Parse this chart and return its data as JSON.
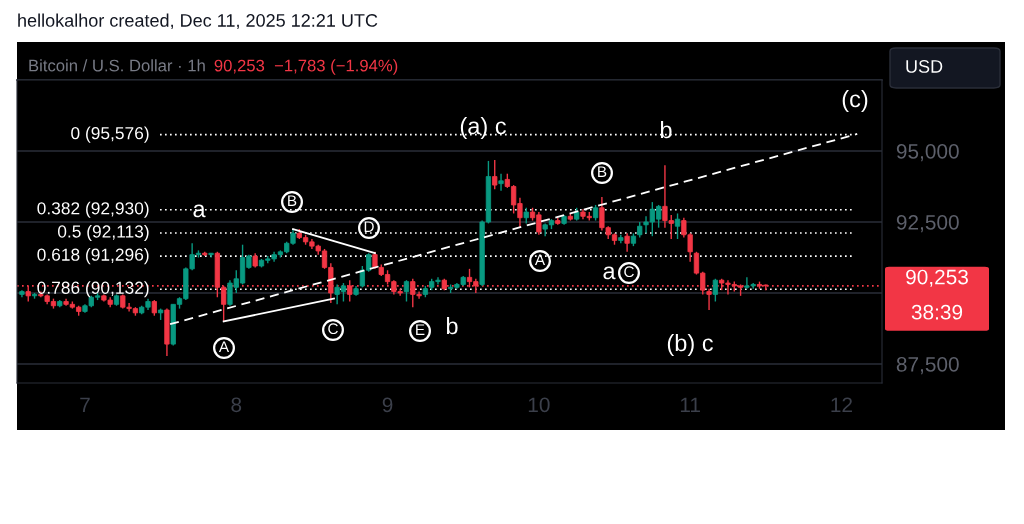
{
  "chart_data": {
    "type": "candlestick",
    "title": "hellokalhor created, Dec 11, 2025 12:21 UTC",
    "subtitle": "Bitcoin / U.S. Dollar · 1h",
    "x": [
      "2025-12-06T14:00",
      "2025-12-06T15:00",
      "2025-12-06T16:00",
      "2025-12-06T17:00",
      "2025-12-06T18:00",
      "2025-12-06T19:00",
      "2025-12-06T20:00",
      "2025-12-06T21:00",
      "2025-12-06T22:00",
      "2025-12-06T23:00",
      "2025-12-07T00:00",
      "2025-12-07T01:00",
      "2025-12-07T02:00",
      "2025-12-07T03:00",
      "2025-12-07T04:00",
      "2025-12-07T05:00",
      "2025-12-07T06:00",
      "2025-12-07T07:00",
      "2025-12-07T08:00",
      "2025-12-07T09:00",
      "2025-12-07T10:00",
      "2025-12-07T11:00",
      "2025-12-07T12:00",
      "2025-12-07T13:00",
      "2025-12-07T14:00",
      "2025-12-07T15:00",
      "2025-12-07T16:00",
      "2025-12-07T17:00",
      "2025-12-07T18:00",
      "2025-12-07T19:00",
      "2025-12-07T20:00",
      "2025-12-07T21:00",
      "2025-12-07T22:00",
      "2025-12-07T23:00",
      "2025-12-08T00:00",
      "2025-12-08T01:00",
      "2025-12-08T02:00",
      "2025-12-08T03:00",
      "2025-12-08T04:00",
      "2025-12-08T05:00",
      "2025-12-08T06:00",
      "2025-12-08T07:00",
      "2025-12-08T08:00",
      "2025-12-08T09:00",
      "2025-12-08T10:00",
      "2025-12-08T11:00",
      "2025-12-08T12:00",
      "2025-12-08T13:00",
      "2025-12-08T14:00",
      "2025-12-08T15:00",
      "2025-12-08T16:00",
      "2025-12-08T17:00",
      "2025-12-08T18:00",
      "2025-12-08T19:00",
      "2025-12-08T20:00",
      "2025-12-08T21:00",
      "2025-12-08T22:00",
      "2025-12-08T23:00",
      "2025-12-09T00:00",
      "2025-12-09T01:00",
      "2025-12-09T02:00",
      "2025-12-09T03:00",
      "2025-12-09T04:00",
      "2025-12-09T05:00",
      "2025-12-09T06:00",
      "2025-12-09T07:00",
      "2025-12-09T08:00",
      "2025-12-09T09:00",
      "2025-12-09T10:00",
      "2025-12-09T11:00",
      "2025-12-09T12:00",
      "2025-12-09T13:00",
      "2025-12-09T14:00",
      "2025-12-09T15:00",
      "2025-12-09T16:00",
      "2025-12-09T17:00",
      "2025-12-09T18:00",
      "2025-12-09T19:00",
      "2025-12-09T20:00",
      "2025-12-09T21:00",
      "2025-12-09T22:00",
      "2025-12-09T23:00",
      "2025-12-10T00:00",
      "2025-12-10T01:00",
      "2025-12-10T02:00",
      "2025-12-10T03:00",
      "2025-12-10T04:00",
      "2025-12-10T05:00",
      "2025-12-10T06:00",
      "2025-12-10T07:00",
      "2025-12-10T08:00",
      "2025-12-10T09:00",
      "2025-12-10T10:00",
      "2025-12-10T11:00",
      "2025-12-10T12:00",
      "2025-12-10T13:00",
      "2025-12-10T14:00",
      "2025-12-10T15:00",
      "2025-12-10T16:00",
      "2025-12-10T17:00",
      "2025-12-10T18:00",
      "2025-12-10T19:00",
      "2025-12-10T20:00",
      "2025-12-10T21:00",
      "2025-12-10T22:00",
      "2025-12-10T23:00",
      "2025-12-11T00:00",
      "2025-12-11T01:00",
      "2025-12-11T02:00",
      "2025-12-11T03:00",
      "2025-12-11T04:00",
      "2025-12-11T05:00",
      "2025-12-11T06:00",
      "2025-12-11T07:00",
      "2025-12-11T08:00",
      "2025-12-11T09:00",
      "2025-12-11T10:00",
      "2025-12-11T11:00",
      "2025-12-11T12:00"
    ],
    "ohlc": [
      [
        89950,
        90100,
        89850,
        90050
      ],
      [
        90050,
        90250,
        89700,
        89900
      ],
      [
        89900,
        90000,
        89800,
        89950
      ],
      [
        89950,
        90050,
        89850,
        89900
      ],
      [
        89900,
        89950,
        89600,
        89700
      ],
      [
        89700,
        89800,
        89450,
        89550
      ],
      [
        89550,
        89750,
        89500,
        89700
      ],
      [
        89700,
        89800,
        89550,
        89600
      ],
      [
        89600,
        89700,
        89450,
        89500
      ],
      [
        89500,
        89550,
        89200,
        89350
      ],
      [
        89350,
        89600,
        89300,
        89550
      ],
      [
        89550,
        89900,
        89500,
        89850
      ],
      [
        89850,
        90000,
        89750,
        89900
      ],
      [
        89900,
        89950,
        89700,
        89750
      ],
      [
        89750,
        89850,
        89500,
        89600
      ],
      [
        89600,
        89950,
        89550,
        89900
      ],
      [
        89900,
        89950,
        89450,
        89500
      ],
      [
        89500,
        89650,
        89350,
        89450
      ],
      [
        89450,
        89500,
        89200,
        89300
      ],
      [
        89300,
        89550,
        89250,
        89500
      ],
      [
        89500,
        89800,
        89400,
        89700
      ],
      [
        89700,
        89750,
        89200,
        89300
      ],
      [
        89300,
        89450,
        89050,
        89400
      ],
      [
        89400,
        89450,
        87780,
        88200
      ],
      [
        88200,
        89600,
        88150,
        89600
      ],
      [
        89600,
        89850,
        89450,
        89800
      ],
      [
        89800,
        90900,
        89750,
        90850
      ],
      [
        90850,
        91750,
        90800,
        91350
      ],
      [
        91350,
        91500,
        91250,
        91400
      ],
      [
        91400,
        91450,
        91300,
        91350
      ],
      [
        91350,
        91400,
        91250,
        91400
      ],
      [
        91400,
        91450,
        89850,
        90200
      ],
      [
        90200,
        90250,
        88980,
        89600
      ],
      [
        89600,
        90450,
        89550,
        90350
      ],
      [
        90200,
        90800,
        90000,
        90500
      ],
      [
        90350,
        91700,
        90300,
        91250
      ],
      [
        90900,
        91350,
        90850,
        91300
      ],
      [
        91300,
        91400,
        90900,
        90950
      ],
      [
        90950,
        91200,
        90900,
        91150
      ],
      [
        91150,
        91300,
        91050,
        91200
      ],
      [
        91200,
        91450,
        91100,
        91350
      ],
      [
        91350,
        91500,
        91250,
        91450
      ],
      [
        91450,
        91800,
        91400,
        91750
      ],
      [
        91750,
        92250,
        91700,
        92100
      ],
      [
        92100,
        92250,
        91900,
        91950
      ],
      [
        91950,
        92050,
        91700,
        91800
      ],
      [
        91800,
        91900,
        91550,
        91650
      ],
      [
        91650,
        91700,
        91350,
        91480
      ],
      [
        91480,
        91550,
        90850,
        90900
      ],
      [
        90900,
        91050,
        89650,
        90000
      ],
      [
        89950,
        90300,
        89600,
        90200
      ],
      [
        90050,
        90350,
        89700,
        90250
      ],
      [
        90250,
        90450,
        89700,
        89950
      ],
      [
        89950,
        90250,
        89900,
        90150
      ],
      [
        90250,
        90950,
        90200,
        90800
      ],
      [
        90800,
        91400,
        90750,
        91350
      ],
      [
        91350,
        91450,
        90850,
        90900
      ],
      [
        90900,
        91000,
        90600,
        90650
      ],
      [
        90650,
        90800,
        90300,
        90400
      ],
      [
        90400,
        90450,
        89950,
        90050
      ],
      [
        90050,
        90150,
        89900,
        90000
      ],
      [
        90050,
        90450,
        89700,
        90400
      ],
      [
        90400,
        90500,
        89500,
        89950
      ],
      [
        89950,
        90050,
        89800,
        89900
      ],
      [
        89950,
        90250,
        89850,
        90150
      ],
      [
        90200,
        90500,
        90100,
        90400
      ],
      [
        90400,
        90550,
        90300,
        90450
      ],
      [
        90450,
        90500,
        90100,
        90150
      ],
      [
        90150,
        90300,
        90000,
        90200
      ],
      [
        90200,
        90350,
        90150,
        90300
      ],
      [
        90300,
        90600,
        90250,
        90550
      ],
      [
        90550,
        90850,
        90200,
        90400
      ],
      [
        90400,
        90500,
        90000,
        90250
      ],
      [
        90300,
        92550,
        90250,
        92500
      ],
      [
        92500,
        94650,
        92450,
        94100
      ],
      [
        94100,
        94680,
        93650,
        93800
      ],
      [
        93850,
        94200,
        93600,
        93950
      ],
      [
        94000,
        94200,
        93700,
        93750
      ],
      [
        93750,
        93800,
        92800,
        93100
      ],
      [
        93150,
        93350,
        92300,
        92650
      ],
      [
        92650,
        93000,
        92450,
        92850
      ],
      [
        92850,
        93000,
        92550,
        92650
      ],
      [
        92750,
        92850,
        92050,
        92150
      ],
      [
        92250,
        92450,
        92000,
        92400
      ],
      [
        92400,
        92600,
        92250,
        92550
      ],
      [
        92550,
        92650,
        92400,
        92450
      ],
      [
        92450,
        92750,
        92400,
        92700
      ],
      [
        92700,
        92800,
        92550,
        92600
      ],
      [
        92600,
        93000,
        92550,
        92850
      ],
      [
        92850,
        92950,
        92600,
        92700
      ],
      [
        92700,
        92850,
        92550,
        92650
      ],
      [
        92650,
        93100,
        92550,
        93000
      ],
      [
        93000,
        93380,
        92200,
        92300
      ],
      [
        92300,
        92350,
        91900,
        92050
      ],
      [
        92050,
        92100,
        91700,
        91850
      ],
      [
        91850,
        92050,
        91750,
        91950
      ],
      [
        92000,
        92100,
        91450,
        91750
      ],
      [
        91750,
        92100,
        91650,
        92000
      ],
      [
        92050,
        92500,
        91950,
        92350
      ],
      [
        92400,
        92700,
        92100,
        92500
      ],
      [
        92500,
        93200,
        92000,
        92950
      ],
      [
        92600,
        93100,
        92300,
        93050
      ],
      [
        93050,
        94500,
        92300,
        92550
      ],
      [
        92550,
        92750,
        91900,
        92450
      ],
      [
        92350,
        92800,
        91900,
        92600
      ],
      [
        92550,
        92650,
        91950,
        92050
      ],
      [
        92050,
        92100,
        91100,
        91450
      ],
      [
        91400,
        91450,
        90650,
        90700
      ],
      [
        90700,
        90750,
        89950,
        90100
      ],
      [
        90050,
        90150,
        89400,
        89950
      ],
      [
        89950,
        90500,
        89700,
        90450
      ],
      [
        90450,
        90500,
        90100,
        90350
      ],
      [
        90350,
        90450,
        89950,
        90300
      ],
      [
        90300,
        90400,
        90050,
        90250
      ],
      [
        90250,
        90300,
        89900,
        90200
      ],
      [
        90200,
        90550,
        90150,
        90250
      ],
      [
        90250,
        90350,
        90150,
        90300
      ],
      [
        90300,
        90400,
        90150,
        90250
      ],
      [
        90280,
        90300,
        90100,
        90253
      ]
    ],
    "colors": [
      "#089981",
      "#f23645",
      "#089981",
      "#f23645",
      "#f23645",
      "#f23645",
      "#089981",
      "#f23645",
      "#f23645",
      "#f23645",
      "#089981",
      "#089981",
      "#089981",
      "#f23645",
      "#f23645",
      "#089981",
      "#f23645",
      "#f23645",
      "#f23645",
      "#089981",
      "#089981",
      "#f23645",
      "#089981",
      "#f23645",
      "#089981",
      "#089981",
      "#089981",
      "#089981",
      "#089981",
      "#f23645",
      "#089981",
      "#f23645",
      "#f23645",
      "#089981",
      "#089981",
      "#089981",
      "#089981",
      "#f23645",
      "#089981",
      "#089981",
      "#089981",
      "#089981",
      "#089981",
      "#089981",
      "#f23645",
      "#f23645",
      "#f23645",
      "#f23645",
      "#f23645",
      "#f23645",
      "#089981",
      "#089981",
      "#f23645",
      "#089981",
      "#089981",
      "#089981",
      "#f23645",
      "#f23645",
      "#f23645",
      "#f23645",
      "#f23645",
      "#089981",
      "#f23645",
      "#f23645",
      "#089981",
      "#089981",
      "#089981",
      "#f23645",
      "#089981",
      "#089981",
      "#089981",
      "#f23645",
      "#f23645",
      "#089981",
      "#089981",
      "#f23645",
      "#089981",
      "#f23645",
      "#f23645",
      "#f23645",
      "#089981",
      "#f23645",
      "#f23645",
      "#089981",
      "#089981",
      "#f23645",
      "#089981",
      "#f23645",
      "#089981",
      "#f23645",
      "#f23645",
      "#089981",
      "#f23645",
      "#f23645",
      "#f23645",
      "#089981",
      "#f23645",
      "#089981",
      "#089981",
      "#089981",
      "#089981",
      "#089981",
      "#f23645",
      "#f23645",
      "#089981",
      "#f23645",
      "#f23645",
      "#f23645",
      "#f23645",
      "#f23645",
      "#089981",
      "#f23645",
      "#f23645",
      "#f23645",
      "#f23645",
      "#089981",
      "#089981",
      "#f23645",
      "#f23645"
    ],
    "series": [
      {
        "type": "line",
        "color": "#ffffff",
        "line_style": "dashed",
        "x": [
          "2025-12-07T13:30",
          "2025-12-12T02:30"
        ],
        "values": [
          88900,
          95600
        ]
      },
      {
        "type": "line",
        "color": "#ffffff",
        "line_style": "solid",
        "x": [
          "2025-12-07T22:00",
          "2025-12-08T15:30"
        ],
        "values": [
          89000,
          89800
        ]
      },
      {
        "type": "line",
        "color": "#ffffff",
        "line_style": "solid",
        "x": [
          "2025-12-08T09:00",
          "2025-12-08T22:00"
        ],
        "values": [
          92250,
          91400
        ]
      }
    ],
    "xlim": [
      "2025-12-06T13:13",
      "2025-12-12T06:26"
    ],
    "xticks": [
      {
        "value": "2025-12-07",
        "label": "7"
      },
      {
        "value": "2025-12-08",
        "label": "8"
      },
      {
        "value": "2025-12-09",
        "label": "9"
      },
      {
        "value": "2025-12-10",
        "label": "10"
      },
      {
        "value": "2025-12-11",
        "label": "11"
      },
      {
        "value": "2025-12-12",
        "label": "12"
      }
    ],
    "ylim": [
      86830,
      97500
    ],
    "yticks": [
      {
        "value": 87500,
        "label": "87,500"
      },
      {
        "value": 90000,
        "label": null
      },
      {
        "value": 92500,
        "label": "92,500"
      },
      {
        "value": 95000,
        "label": "95,000"
      }
    ],
    "grid": "y",
    "ref_lines": [
      {
        "axis": "y",
        "value": 95576,
        "label": "0 (95,576)",
        "color": "#ffffff",
        "line_style": "dotted"
      },
      {
        "axis": "y",
        "value": 92930,
        "label": "0.382 (92,930)",
        "color": "#ffffff",
        "line_style": "dotted"
      },
      {
        "axis": "y",
        "value": 92113,
        "label": "0.5 (92,113)",
        "color": "#ffffff",
        "line_style": "dotted"
      },
      {
        "axis": "y",
        "value": 91296,
        "label": "0.618 (91,296)",
        "color": "#ffffff",
        "line_style": "dotted"
      },
      {
        "axis": "y",
        "value": 90132,
        "label": "0.786 (90,132)",
        "color": "#ffffff",
        "line_style": "dotted"
      },
      {
        "axis": "y",
        "value": 90253,
        "label": "90,253",
        "color": "#f23645",
        "line_style": "dotted"
      }
    ],
    "annotations": [
      "90,253  −1,783 (−1.94%)",
      "USD",
      "38:39",
      "(c)",
      "(a) c",
      "b",
      "a",
      "B",
      "D",
      "B",
      "A",
      "C",
      "E",
      "b",
      "A",
      "a",
      "C",
      "(b) c"
    ]
  }
}
